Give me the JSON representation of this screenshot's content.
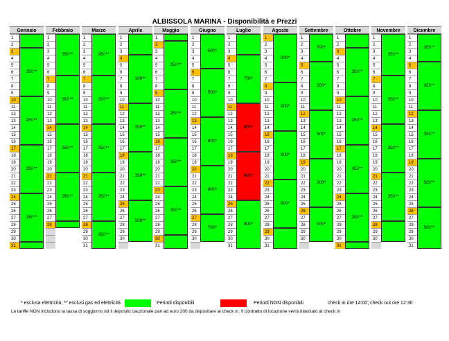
{
  "title": "ALBISSOLA MARINA - Disponibilità e Prezzi",
  "colors": {
    "available": "#00ff00",
    "unavailable": "#ff0000",
    "highlight": "#ffc000",
    "na": "#d9d9d9",
    "normal": "#ffffff"
  },
  "months": [
    {
      "name": "Gennaio",
      "days": 31,
      "hl": [
        3,
        10,
        17,
        24,
        31
      ],
      "na": [],
      "unavail": [],
      "blocks": [
        {
          "from": 1,
          "to": 2,
          "price": ""
        },
        {
          "from": 3,
          "to": 9,
          "price": "350**"
        },
        {
          "from": 10,
          "to": 16,
          "price": "350**"
        },
        {
          "from": 17,
          "to": 23,
          "price": "350**"
        },
        {
          "from": 24,
          "to": 30,
          "price": "350**"
        },
        {
          "from": 31,
          "to": 31,
          "price": ""
        }
      ]
    },
    {
      "name": "Febbraio",
      "days": 28,
      "hl": [
        7,
        14,
        21,
        28
      ],
      "na": [
        29,
        30,
        31
      ],
      "unavail": [],
      "blocks": [
        {
          "from": 1,
          "to": 6,
          "price": "350**"
        },
        {
          "from": 7,
          "to": 13,
          "price": "350**"
        },
        {
          "from": 14,
          "to": 20,
          "price": "350**"
        },
        {
          "from": 21,
          "to": 27,
          "price": "350**"
        },
        {
          "from": 28,
          "to": 28,
          "price": ""
        }
      ]
    },
    {
      "name": "Marzo",
      "days": 31,
      "hl": [
        7,
        14,
        21,
        28
      ],
      "na": [],
      "unavail": [],
      "blocks": [
        {
          "from": 1,
          "to": 6,
          "price": "350**"
        },
        {
          "from": 7,
          "to": 13,
          "price": "350**"
        },
        {
          "from": 14,
          "to": 20,
          "price": "350**"
        },
        {
          "from": 21,
          "to": 27,
          "price": "350**"
        },
        {
          "from": 28,
          "to": 31,
          "price": "350**"
        }
      ]
    },
    {
      "name": "Aprile",
      "days": 30,
      "hl": [
        4,
        11,
        18,
        25
      ],
      "na": [
        31
      ],
      "unavail": [],
      "blocks": [
        {
          "from": 1,
          "to": 3,
          "price": ""
        },
        {
          "from": 4,
          "to": 10,
          "price": "500**"
        },
        {
          "from": 11,
          "to": 17,
          "price": "350**"
        },
        {
          "from": 18,
          "to": 24,
          "price": "350**"
        },
        {
          "from": 25,
          "to": 30,
          "price": "500**"
        }
      ]
    },
    {
      "name": "Maggio",
      "days": 31,
      "hl": [
        2,
        9,
        16,
        23,
        30
      ],
      "na": [],
      "unavail": [],
      "blocks": [
        {
          "from": 1,
          "to": 1,
          "price": ""
        },
        {
          "from": 2,
          "to": 8,
          "price": "350**"
        },
        {
          "from": 9,
          "to": 15,
          "price": "350**"
        },
        {
          "from": 16,
          "to": 22,
          "price": "350**"
        },
        {
          "from": 23,
          "to": 29,
          "price": "350**"
        },
        {
          "from": 30,
          "to": 31,
          "price": ""
        }
      ]
    },
    {
      "name": "Giugno",
      "days": 30,
      "hl": [
        6,
        13,
        20,
        27
      ],
      "na": [
        31
      ],
      "unavail": [],
      "blocks": [
        {
          "from": 1,
          "to": 5,
          "price": "500*"
        },
        {
          "from": 6,
          "to": 12,
          "price": "500*"
        },
        {
          "from": 13,
          "to": 19,
          "price": "600*"
        },
        {
          "from": 20,
          "to": 26,
          "price": "600*"
        },
        {
          "from": 27,
          "to": 30,
          "price": "700*"
        }
      ]
    },
    {
      "name": "Luglio",
      "days": 31,
      "hl": [
        4,
        11,
        18,
        25
      ],
      "na": [],
      "unavail": [
        11,
        12,
        13,
        14,
        15,
        16,
        17,
        18,
        19,
        20,
        21,
        22,
        23,
        24
      ],
      "blocks": [
        {
          "from": 1,
          "to": 3,
          "price": ""
        },
        {
          "from": 4,
          "to": 10,
          "price": "700*"
        },
        {
          "from": 11,
          "to": 17,
          "price": "800*"
        },
        {
          "from": 18,
          "to": 24,
          "price": "800*"
        },
        {
          "from": 25,
          "to": 31,
          "price": "900*"
        }
      ]
    },
    {
      "name": "Agosto",
      "days": 31,
      "hl": [
        1,
        8,
        15,
        22,
        29
      ],
      "na": [],
      "unavail": [],
      "blocks": [
        {
          "from": 1,
          "to": 7,
          "price": "900*"
        },
        {
          "from": 8,
          "to": 14,
          "price": "900*"
        },
        {
          "from": 15,
          "to": 21,
          "price": "900*"
        },
        {
          "from": 22,
          "to": 28,
          "price": "800*"
        },
        {
          "from": 29,
          "to": 31,
          "price": ""
        }
      ]
    },
    {
      "name": "Settembre",
      "days": 30,
      "hl": [
        5,
        12,
        19,
        26
      ],
      "na": [
        31
      ],
      "unavail": [],
      "blocks": [
        {
          "from": 1,
          "to": 4,
          "price": "700*"
        },
        {
          "from": 5,
          "to": 11,
          "price": "600*"
        },
        {
          "from": 12,
          "to": 18,
          "price": "600*"
        },
        {
          "from": 19,
          "to": 25,
          "price": "500*"
        },
        {
          "from": 26,
          "to": 30,
          "price": "500*"
        }
      ]
    },
    {
      "name": "Ottobre",
      "days": 31,
      "hl": [
        3,
        10,
        17,
        24,
        31
      ],
      "na": [],
      "unavail": [],
      "blocks": [
        {
          "from": 1,
          "to": 2,
          "price": ""
        },
        {
          "from": 3,
          "to": 9,
          "price": "350**"
        },
        {
          "from": 10,
          "to": 16,
          "price": "350**"
        },
        {
          "from": 17,
          "to": 23,
          "price": "350**"
        },
        {
          "from": 24,
          "to": 30,
          "price": "350**"
        },
        {
          "from": 31,
          "to": 31,
          "price": ""
        }
      ]
    },
    {
      "name": "Novembre",
      "days": 30,
      "hl": [
        7,
        14,
        21,
        28
      ],
      "na": [
        31
      ],
      "unavail": [],
      "blocks": [
        {
          "from": 1,
          "to": 6,
          "price": "350**"
        },
        {
          "from": 7,
          "to": 13,
          "price": "350**"
        },
        {
          "from": 14,
          "to": 20,
          "price": "350**"
        },
        {
          "from": 21,
          "to": 27,
          "price": "350**"
        },
        {
          "from": 28,
          "to": 30,
          "price": ""
        }
      ]
    },
    {
      "name": "Dicembre",
      "days": 31,
      "hl": [
        5,
        12,
        19,
        26
      ],
      "na": [],
      "unavail": [],
      "blocks": [
        {
          "from": 1,
          "to": 4,
          "price": "350**"
        },
        {
          "from": 5,
          "to": 11,
          "price": "350**"
        },
        {
          "from": 12,
          "to": 18,
          "price": "350**"
        },
        {
          "from": 19,
          "to": 25,
          "price": "500**"
        },
        {
          "from": 26,
          "to": 31,
          "price": "500**"
        }
      ]
    }
  ],
  "legend": {
    "note": "* esclusa elettricità; ** esclusi gas ed elettricità",
    "available": "Periodi disponibili",
    "unavailable": "Periodi NON disponibili",
    "checkin": "check in ore 14:00; check out ore 12:30",
    "footer": "Le tariffe NON includono la tassa di soggiorno ed il deposito cauzionale pari ad euro 200 da depositare al check in. Il contratto di locazione verrà rilasciato al check in"
  }
}
